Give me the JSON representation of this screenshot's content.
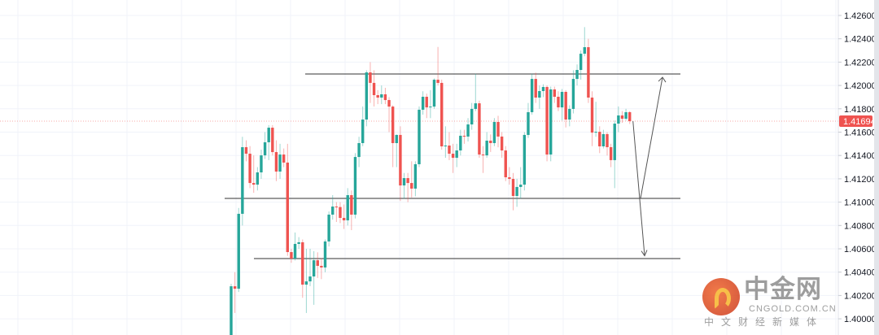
{
  "chart_data": {
    "type": "candlestick",
    "title": "",
    "symbol_current_price": "1.41694",
    "yticks": [
      "1.42600",
      "1.42400",
      "1.42200",
      "1.42000",
      "1.41800",
      "1.41600",
      "1.41400",
      "1.41200",
      "1.41000",
      "1.40800",
      "1.40600",
      "1.40400",
      "1.40200",
      "1.40000"
    ],
    "ylim": [
      1.3985,
      1.4275
    ],
    "grid": true,
    "colors": {
      "up": "#26a69a",
      "down": "#ef5350",
      "level": "#333333",
      "price_tag": "#ef5350"
    },
    "ohlc": [
      [
        1.39861,
        1.403,
        1.398,
        1.40279
      ],
      [
        1.40279,
        1.404,
        1.4005,
        1.40258
      ],
      [
        1.40258,
        1.4095,
        1.4023,
        1.409
      ],
      [
        1.409,
        1.4156,
        1.408,
        1.41471
      ],
      [
        1.41471,
        1.4153,
        1.4135,
        1.41415
      ],
      [
        1.41415,
        1.4148,
        1.4112,
        1.41164
      ],
      [
        1.41164,
        1.414,
        1.4108,
        1.4115
      ],
      [
        1.4115,
        1.413,
        1.411,
        1.41255
      ],
      [
        1.41255,
        1.4145,
        1.412,
        1.41401
      ],
      [
        1.41401,
        1.416,
        1.4137,
        1.41513
      ],
      [
        1.41513,
        1.4166,
        1.4136,
        1.41638
      ],
      [
        1.41638,
        1.4166,
        1.414,
        1.41429
      ],
      [
        1.41429,
        1.4153,
        1.4118,
        1.41262
      ],
      [
        1.41262,
        1.415,
        1.412,
        1.41408
      ],
      [
        1.41408,
        1.4146,
        1.413,
        1.41339
      ],
      [
        1.41339,
        1.415,
        1.4054,
        1.40572
      ],
      [
        1.40572,
        1.406,
        1.4048,
        1.40516
      ],
      [
        1.40516,
        1.4074,
        1.405,
        1.40642
      ],
      [
        1.40642,
        1.407,
        1.406,
        1.40656
      ],
      [
        1.40656,
        1.4068,
        1.4018,
        1.40293
      ],
      [
        1.40293,
        1.406,
        1.4005,
        1.40321
      ],
      [
        1.40321,
        1.406,
        1.4028,
        1.40363
      ],
      [
        1.40363,
        1.4058,
        1.4012,
        1.40502
      ],
      [
        1.40502,
        1.4057,
        1.4035,
        1.40454
      ],
      [
        1.40454,
        1.4052,
        1.4034,
        1.4044
      ],
      [
        1.4044,
        1.4068,
        1.404,
        1.40663
      ],
      [
        1.40663,
        1.4092,
        1.4062,
        1.40893
      ],
      [
        1.40893,
        1.4106,
        1.4085,
        1.40962
      ],
      [
        1.40962,
        1.41,
        1.4083,
        1.40958
      ],
      [
        1.40958,
        1.41,
        1.4082,
        1.40865
      ],
      [
        1.40865,
        1.4098,
        1.4077,
        1.40844
      ],
      [
        1.40844,
        1.4112,
        1.408,
        1.4106
      ],
      [
        1.4106,
        1.411,
        1.4076,
        1.40893
      ],
      [
        1.40893,
        1.4142,
        1.4086,
        1.41387
      ],
      [
        1.41387,
        1.4156,
        1.413,
        1.41506
      ],
      [
        1.41506,
        1.4182,
        1.4148,
        1.41708
      ],
      [
        1.41708,
        1.4213,
        1.4165,
        1.42112
      ],
      [
        1.42112,
        1.422,
        1.4185,
        1.42022
      ],
      [
        1.42022,
        1.4213,
        1.4182,
        1.41917
      ],
      [
        1.41917,
        1.4196,
        1.4184,
        1.41896
      ],
      [
        1.41896,
        1.42,
        1.4184,
        1.41924
      ],
      [
        1.41924,
        1.4198,
        1.4184,
        1.41875
      ],
      [
        1.41875,
        1.419,
        1.416,
        1.41819
      ],
      [
        1.41819,
        1.4183,
        1.413,
        1.41506
      ],
      [
        1.41506,
        1.4158,
        1.413,
        1.41576
      ],
      [
        1.41576,
        1.4165,
        1.4101,
        1.41143
      ],
      [
        1.41143,
        1.4125,
        1.4103,
        1.41206
      ],
      [
        1.41206,
        1.4125,
        1.41,
        1.41164
      ],
      [
        1.41164,
        1.4135,
        1.4104,
        1.41116
      ],
      [
        1.41116,
        1.4135,
        1.4105,
        1.41325
      ],
      [
        1.41325,
        1.4182,
        1.413,
        1.41792
      ],
      [
        1.41792,
        1.4195,
        1.4175,
        1.41903
      ],
      [
        1.41903,
        1.4193,
        1.4172,
        1.41812
      ],
      [
        1.41812,
        1.4196,
        1.4172,
        1.41819
      ],
      [
        1.41819,
        1.4206,
        1.418,
        1.42049
      ],
      [
        1.42049,
        1.4233,
        1.42,
        1.42022
      ],
      [
        1.42022,
        1.4205,
        1.4145,
        1.41478
      ],
      [
        1.41478,
        1.4165,
        1.4138,
        1.41485
      ],
      [
        1.41485,
        1.416,
        1.4136,
        1.41415
      ],
      [
        1.41415,
        1.415,
        1.4125,
        1.4138
      ],
      [
        1.4138,
        1.415,
        1.413,
        1.41443
      ],
      [
        1.41443,
        1.4162,
        1.414,
        1.41569
      ],
      [
        1.41569,
        1.4162,
        1.415,
        1.41562
      ],
      [
        1.41562,
        1.4172,
        1.4152,
        1.41666
      ],
      [
        1.41666,
        1.4185,
        1.4162,
        1.41799
      ],
      [
        1.41799,
        1.421,
        1.4178,
        1.41847
      ],
      [
        1.41847,
        1.4187,
        1.4138,
        1.41408
      ],
      [
        1.41408,
        1.4148,
        1.4125,
        1.41401
      ],
      [
        1.41401,
        1.416,
        1.4138,
        1.41527
      ],
      [
        1.41527,
        1.4158,
        1.4143,
        1.41506
      ],
      [
        1.41506,
        1.4172,
        1.4148,
        1.41687
      ],
      [
        1.41687,
        1.4174,
        1.4147,
        1.41562
      ],
      [
        1.41562,
        1.416,
        1.4138,
        1.41443
      ],
      [
        1.41443,
        1.4148,
        1.4118,
        1.41213
      ],
      [
        1.41213,
        1.413,
        1.4115,
        1.41199
      ],
      [
        1.41199,
        1.4125,
        1.4093,
        1.41053
      ],
      [
        1.41053,
        1.412,
        1.4096,
        1.4113
      ],
      [
        1.4113,
        1.413,
        1.4103,
        1.4115
      ],
      [
        1.4115,
        1.416,
        1.411,
        1.41576
      ],
      [
        1.41576,
        1.4185,
        1.4155,
        1.41771
      ],
      [
        1.41771,
        1.421,
        1.4175,
        1.42056
      ],
      [
        1.42056,
        1.4211,
        1.4185,
        1.41896
      ],
      [
        1.41896,
        1.42,
        1.418,
        1.41952
      ],
      [
        1.41952,
        1.4201,
        1.419,
        1.41987
      ],
      [
        1.41987,
        1.42,
        1.4135,
        1.41408
      ],
      [
        1.41408,
        1.4199,
        1.4135,
        1.41966
      ],
      [
        1.41966,
        1.4199,
        1.4185,
        1.41903
      ],
      [
        1.41903,
        1.4195,
        1.4178,
        1.41812
      ],
      [
        1.41812,
        1.4197,
        1.417,
        1.41945
      ],
      [
        1.41945,
        1.4196,
        1.4164,
        1.41708
      ],
      [
        1.41708,
        1.4183,
        1.4165,
        1.41799
      ],
      [
        1.41799,
        1.4213,
        1.4176,
        1.42056
      ],
      [
        1.42056,
        1.4218,
        1.42,
        1.42133
      ],
      [
        1.42133,
        1.423,
        1.4205,
        1.42272
      ],
      [
        1.42272,
        1.425,
        1.4225,
        1.42328
      ],
      [
        1.42328,
        1.424,
        1.4185,
        1.41896
      ],
      [
        1.41896,
        1.4195,
        1.4148,
        1.41596
      ],
      [
        1.41596,
        1.4186,
        1.4156,
        1.41603
      ],
      [
        1.41603,
        1.4165,
        1.4142,
        1.41478
      ],
      [
        1.41478,
        1.4162,
        1.4146,
        1.41583
      ],
      [
        1.41583,
        1.416,
        1.414,
        1.41471
      ],
      [
        1.41471,
        1.415,
        1.413,
        1.4136
      ],
      [
        1.4136,
        1.417,
        1.4112,
        1.41673
      ],
      [
        1.41673,
        1.4182,
        1.416,
        1.41743
      ],
      [
        1.41743,
        1.4178,
        1.4168,
        1.41715
      ],
      [
        1.41715,
        1.418,
        1.417,
        1.41771
      ],
      [
        1.41771,
        1.4178,
        1.4167,
        1.41694
      ]
    ],
    "levels": [
      1.42098,
      1.41032,
      1.40516
    ],
    "projection": {
      "down_target": 1.4054,
      "pivot": 1.41032,
      "up_target": 1.4207
    }
  },
  "logo": {
    "name_cn": "中金网",
    "domain": "CNGOLD.COM.CN",
    "tagline": "中文财经新媒体"
  }
}
